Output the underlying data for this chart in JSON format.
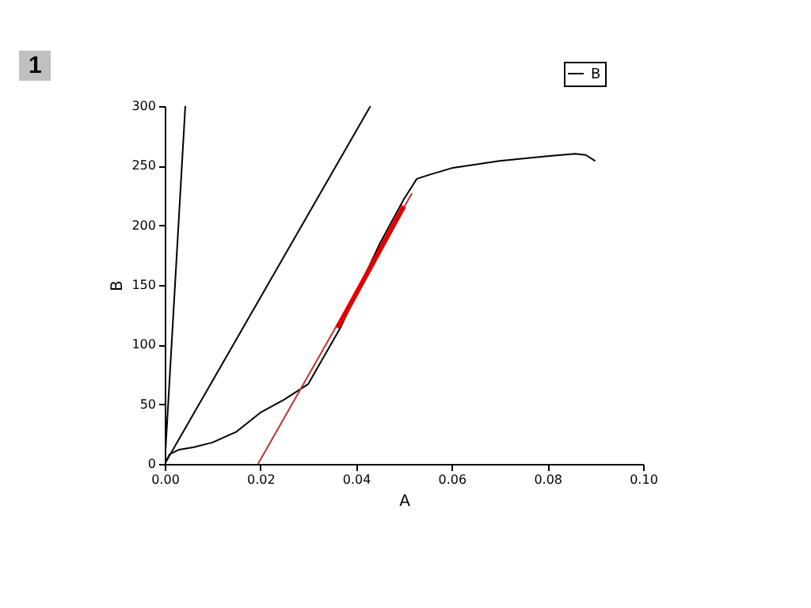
{
  "chart_data": {
    "type": "line",
    "xlabel": "A",
    "ylabel": "B",
    "annotations": [
      "1"
    ],
    "xlim": [
      0,
      0.1
    ],
    "ylim": [
      0,
      300
    ],
    "xticks": [
      {
        "value": 0,
        "label": "0.00"
      },
      0.02,
      0.04,
      0.06,
      {
        "value": 0.08,
        "label": "0.08"
      },
      {
        "value": 0.1,
        "label": "0.10"
      }
    ],
    "yticks": [
      0,
      50,
      100,
      150,
      200,
      250,
      300
    ],
    "grid": false,
    "legend": "top right",
    "marker": "none",
    "line_style": "solid",
    "series": [
      {
        "name": "B",
        "color": "#000000",
        "x": [
          0,
          0.001,
          0.003,
          0.006,
          0.01,
          0.015,
          0.02,
          0.025,
          0.03,
          0.0367,
          0.045,
          0.05,
          0.0527,
          0.055,
          0.06,
          0.07,
          0.08,
          0.0858,
          0.088,
          0.09
        ],
        "values": [
          0,
          8,
          12,
          14,
          18,
          27,
          43,
          54,
          67,
          114,
          185,
          222,
          239,
          242,
          248,
          254,
          258,
          260,
          259,
          254
        ]
      },
      {
        "color": "#000000",
        "x": [
          0,
          0.0043
        ],
        "values": [
          0,
          300
        ]
      },
      {
        "color": "#000000",
        "x": [
          0,
          0.043
        ],
        "values": [
          0,
          300
        ]
      },
      {
        "color": "#c03030",
        "x": [
          0.0195,
          0.0517
        ],
        "values": [
          0,
          227
        ]
      },
      {
        "color": "#e00000",
        "x": [
          0.0361,
          0.05
        ],
        "values": [
          114,
          216
        ]
      }
    ]
  }
}
